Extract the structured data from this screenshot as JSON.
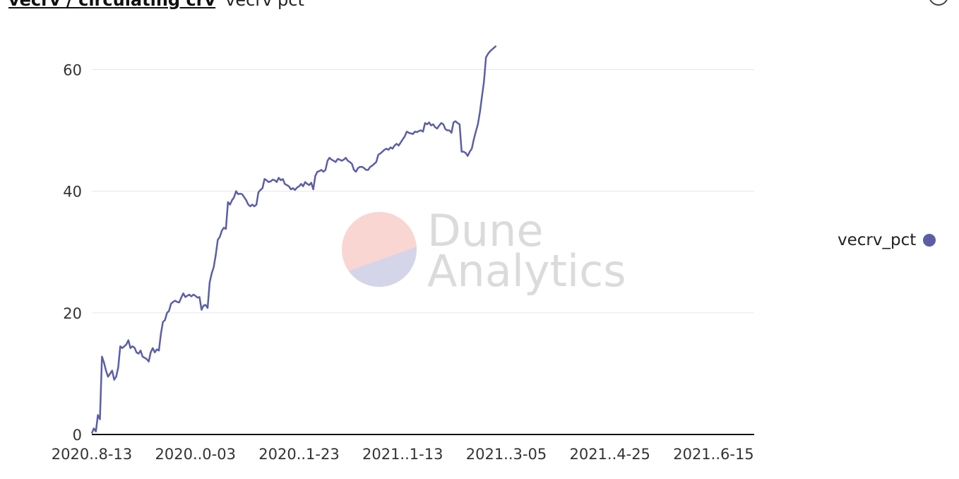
{
  "header": {
    "query_title": "vecrv / circulating crv",
    "viz_name": "vecrv pct"
  },
  "icons": {
    "menu": "chevron-down-circle-icon"
  },
  "watermark": {
    "line1": "Dune",
    "line2": "Analytics"
  },
  "colors": {
    "series": "#5b5ea6",
    "axis": "#111111",
    "grid": "#e6e6e6"
  },
  "legend": {
    "label": "vecrv_pct"
  },
  "chart_data": {
    "type": "line",
    "title": "",
    "xlabel": "",
    "ylabel": "",
    "ylim": [
      0,
      64
    ],
    "xlim": [
      "2020-08-13",
      "2021-07-05"
    ],
    "grid": true,
    "legend_position": "right",
    "y_ticks": [
      0,
      20,
      40,
      60
    ],
    "x_tick_labels": [
      "2020..8-13",
      "2020..0-03",
      "2020..1-23",
      "2021..1-13",
      "2021..3-05",
      "2021..4-25",
      "2021..6-15"
    ],
    "x_tick_dates": [
      "2020-08-13",
      "2020-10-03",
      "2020-11-23",
      "2021-01-13",
      "2021-03-05",
      "2021-04-25",
      "2021-06-15"
    ],
    "series": [
      {
        "name": "vecrv_pct",
        "points": [
          [
            "2020-08-13",
            0.2
          ],
          [
            "2020-08-14",
            1.0
          ],
          [
            "2020-08-15",
            0.5
          ],
          [
            "2020-08-16",
            3.2
          ],
          [
            "2020-08-17",
            2.5
          ],
          [
            "2020-08-18",
            12.8
          ],
          [
            "2020-08-19",
            11.8
          ],
          [
            "2020-08-20",
            10.5
          ],
          [
            "2020-08-21",
            9.5
          ],
          [
            "2020-08-22",
            10.0
          ],
          [
            "2020-08-23",
            10.5
          ],
          [
            "2020-08-24",
            9.0
          ],
          [
            "2020-08-25",
            9.5
          ],
          [
            "2020-08-26",
            11.0
          ],
          [
            "2020-08-27",
            14.5
          ],
          [
            "2020-08-28",
            14.2
          ],
          [
            "2020-08-29",
            14.5
          ],
          [
            "2020-08-30",
            14.8
          ],
          [
            "2020-08-31",
            15.5
          ],
          [
            "2020-09-01",
            14.2
          ],
          [
            "2020-09-02",
            14.5
          ],
          [
            "2020-09-03",
            14.3
          ],
          [
            "2020-09-04",
            13.5
          ],
          [
            "2020-09-05",
            13.3
          ],
          [
            "2020-09-06",
            13.8
          ],
          [
            "2020-09-07",
            12.8
          ],
          [
            "2020-09-08",
            12.6
          ],
          [
            "2020-09-09",
            12.4
          ],
          [
            "2020-09-10",
            12.0
          ],
          [
            "2020-09-11",
            13.5
          ],
          [
            "2020-09-12",
            14.2
          ],
          [
            "2020-09-13",
            13.5
          ],
          [
            "2020-09-14",
            14.0
          ],
          [
            "2020-09-15",
            13.8
          ],
          [
            "2020-09-16",
            16.5
          ],
          [
            "2020-09-17",
            18.5
          ],
          [
            "2020-09-18",
            18.8
          ],
          [
            "2020-09-19",
            20.0
          ],
          [
            "2020-09-20",
            20.3
          ],
          [
            "2020-09-21",
            21.5
          ],
          [
            "2020-09-22",
            21.8
          ],
          [
            "2020-09-23",
            22.0
          ],
          [
            "2020-09-24",
            21.8
          ],
          [
            "2020-09-25",
            21.7
          ],
          [
            "2020-09-26",
            22.5
          ],
          [
            "2020-09-27",
            23.2
          ],
          [
            "2020-09-28",
            22.6
          ],
          [
            "2020-09-29",
            22.8
          ],
          [
            "2020-09-30",
            23.0
          ],
          [
            "2020-10-01",
            22.7
          ],
          [
            "2020-10-02",
            23.0
          ],
          [
            "2020-10-03",
            22.8
          ],
          [
            "2020-10-04",
            22.5
          ],
          [
            "2020-10-05",
            22.6
          ],
          [
            "2020-10-06",
            20.5
          ],
          [
            "2020-10-07",
            21.2
          ],
          [
            "2020-10-08",
            21.3
          ],
          [
            "2020-10-09",
            20.8
          ],
          [
            "2020-10-10",
            25.0
          ],
          [
            "2020-10-11",
            26.5
          ],
          [
            "2020-10-12",
            27.5
          ],
          [
            "2020-10-13",
            29.5
          ],
          [
            "2020-10-14",
            32.0
          ],
          [
            "2020-10-15",
            32.5
          ],
          [
            "2020-10-16",
            33.5
          ],
          [
            "2020-10-17",
            34.0
          ],
          [
            "2020-10-18",
            33.8
          ],
          [
            "2020-10-19",
            38.2
          ],
          [
            "2020-10-20",
            37.8
          ],
          [
            "2020-10-21",
            38.5
          ],
          [
            "2020-10-22",
            39.0
          ],
          [
            "2020-10-23",
            40.0
          ],
          [
            "2020-10-24",
            39.5
          ],
          [
            "2020-10-25",
            39.6
          ],
          [
            "2020-10-26",
            39.5
          ],
          [
            "2020-10-27",
            39.0
          ],
          [
            "2020-10-28",
            38.5
          ],
          [
            "2020-10-29",
            37.8
          ],
          [
            "2020-10-30",
            37.5
          ],
          [
            "2020-10-31",
            37.8
          ],
          [
            "2020-11-01",
            37.5
          ],
          [
            "2020-11-02",
            37.8
          ],
          [
            "2020-11-03",
            39.8
          ],
          [
            "2020-11-04",
            40.2
          ],
          [
            "2020-11-05",
            40.5
          ],
          [
            "2020-11-06",
            42.0
          ],
          [
            "2020-11-07",
            41.8
          ],
          [
            "2020-11-08",
            41.5
          ],
          [
            "2020-11-09",
            41.6
          ],
          [
            "2020-11-10",
            41.9
          ],
          [
            "2020-11-11",
            41.8
          ],
          [
            "2020-11-12",
            41.5
          ],
          [
            "2020-11-13",
            42.2
          ],
          [
            "2020-11-14",
            41.8
          ],
          [
            "2020-11-15",
            42.0
          ],
          [
            "2020-11-16",
            41.2
          ],
          [
            "2020-11-17",
            41.0
          ],
          [
            "2020-11-18",
            40.8
          ],
          [
            "2020-11-19",
            40.3
          ],
          [
            "2020-11-20",
            40.5
          ],
          [
            "2020-11-21",
            40.2
          ],
          [
            "2020-11-22",
            40.6
          ],
          [
            "2020-11-23",
            40.8
          ],
          [
            "2020-11-24",
            41.2
          ],
          [
            "2020-11-25",
            40.8
          ],
          [
            "2020-11-26",
            41.5
          ],
          [
            "2020-11-27",
            41.2
          ],
          [
            "2020-11-28",
            41.0
          ],
          [
            "2020-11-29",
            41.4
          ],
          [
            "2020-11-30",
            40.3
          ],
          [
            "2020-12-01",
            42.5
          ],
          [
            "2020-12-02",
            43.2
          ],
          [
            "2020-12-03",
            43.3
          ],
          [
            "2020-12-04",
            43.5
          ],
          [
            "2020-12-05",
            43.2
          ],
          [
            "2020-12-06",
            43.5
          ],
          [
            "2020-12-07",
            45.0
          ],
          [
            "2020-12-08",
            45.5
          ],
          [
            "2020-12-09",
            45.2
          ],
          [
            "2020-12-10",
            45.0
          ],
          [
            "2020-12-11",
            44.8
          ],
          [
            "2020-12-12",
            45.3
          ],
          [
            "2020-12-13",
            45.2
          ],
          [
            "2020-12-14",
            45.0
          ],
          [
            "2020-12-15",
            45.2
          ],
          [
            "2020-12-16",
            45.5
          ],
          [
            "2020-12-17",
            45.0
          ],
          [
            "2020-12-18",
            44.8
          ],
          [
            "2020-12-19",
            44.5
          ],
          [
            "2020-12-20",
            43.5
          ],
          [
            "2020-12-21",
            43.2
          ],
          [
            "2020-12-22",
            43.8
          ],
          [
            "2020-12-23",
            44.0
          ],
          [
            "2020-12-24",
            44.0
          ],
          [
            "2020-12-25",
            43.8
          ],
          [
            "2020-12-26",
            43.5
          ],
          [
            "2020-12-27",
            43.5
          ],
          [
            "2020-12-28",
            44.0
          ],
          [
            "2020-12-29",
            44.2
          ],
          [
            "2020-12-30",
            44.5
          ],
          [
            "2020-12-31",
            44.8
          ],
          [
            "2021-01-01",
            46.0
          ],
          [
            "2021-01-02",
            46.2
          ],
          [
            "2021-01-03",
            46.5
          ],
          [
            "2021-01-04",
            46.8
          ],
          [
            "2021-01-05",
            47.0
          ],
          [
            "2021-01-06",
            46.8
          ],
          [
            "2021-01-07",
            47.2
          ],
          [
            "2021-01-08",
            47.0
          ],
          [
            "2021-01-09",
            47.5
          ],
          [
            "2021-01-10",
            47.8
          ],
          [
            "2021-01-11",
            47.5
          ],
          [
            "2021-01-12",
            48.0
          ],
          [
            "2021-01-13",
            48.5
          ],
          [
            "2021-01-14",
            49.0
          ],
          [
            "2021-01-15",
            49.8
          ],
          [
            "2021-01-16",
            49.6
          ],
          [
            "2021-01-17",
            49.5
          ],
          [
            "2021-01-18",
            49.4
          ],
          [
            "2021-01-19",
            49.8
          ],
          [
            "2021-01-20",
            49.7
          ],
          [
            "2021-01-21",
            49.9
          ],
          [
            "2021-01-22",
            50.0
          ],
          [
            "2021-01-23",
            49.8
          ],
          [
            "2021-01-24",
            51.2
          ],
          [
            "2021-01-25",
            51.0
          ],
          [
            "2021-01-26",
            51.3
          ],
          [
            "2021-01-27",
            50.8
          ],
          [
            "2021-01-28",
            51.0
          ],
          [
            "2021-01-29",
            50.5
          ],
          [
            "2021-01-30",
            50.3
          ],
          [
            "2021-01-31",
            50.8
          ],
          [
            "2021-02-01",
            51.2
          ],
          [
            "2021-02-02",
            51.0
          ],
          [
            "2021-02-03",
            50.2
          ],
          [
            "2021-02-04",
            50.0
          ],
          [
            "2021-02-05",
            50.0
          ],
          [
            "2021-02-06",
            49.6
          ],
          [
            "2021-02-07",
            51.3
          ],
          [
            "2021-02-08",
            51.5
          ],
          [
            "2021-02-09",
            51.2
          ],
          [
            "2021-02-10",
            51.0
          ],
          [
            "2021-02-11",
            46.5
          ],
          [
            "2021-02-12",
            46.5
          ],
          [
            "2021-02-13",
            46.3
          ],
          [
            "2021-02-14",
            45.8
          ],
          [
            "2021-02-15",
            46.5
          ],
          [
            "2021-02-16",
            47.0
          ],
          [
            "2021-02-17",
            48.5
          ],
          [
            "2021-02-18",
            49.8
          ],
          [
            "2021-02-19",
            51.0
          ],
          [
            "2021-02-20",
            53.0
          ],
          [
            "2021-02-21",
            55.5
          ],
          [
            "2021-02-22",
            58.0
          ],
          [
            "2021-02-23",
            62.0
          ],
          [
            "2021-02-24",
            62.6
          ],
          [
            "2021-02-25",
            63.0
          ],
          [
            "2021-02-26",
            63.3
          ],
          [
            "2021-02-27",
            63.6
          ],
          [
            "2021-02-28",
            63.9
          ]
        ]
      }
    ]
  }
}
